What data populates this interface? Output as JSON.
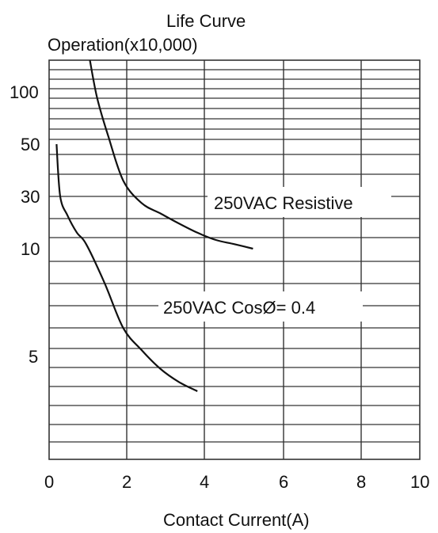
{
  "chart_data": {
    "type": "line",
    "title": "Life Curve",
    "ylabel": "Operation(x10,000)",
    "xlabel": "Contact Current(A)",
    "xlim": [
      0,
      10
    ],
    "x_ticks": [
      "0",
      "2",
      "4",
      "6",
      "8",
      "10"
    ],
    "y_ticks": [
      "100",
      "50",
      "30",
      "10",
      "5"
    ],
    "series": [
      {
        "name": "250VAC Resistive",
        "x": [
          1.1,
          1.3,
          1.6,
          2.0,
          2.5,
          3.0,
          3.5,
          4.0,
          4.5,
          5.0,
          5.5
        ],
        "y": [
          200,
          90,
          55,
          35,
          26,
          21,
          17,
          14,
          12,
          11,
          10
        ]
      },
      {
        "name": "250VAC CosØ= 0.4",
        "x": [
          0.2,
          0.3,
          0.5,
          0.75,
          1.0,
          1.5,
          2.0,
          2.5,
          3.0,
          3.5,
          4.0
        ],
        "y": [
          50,
          30,
          20,
          14,
          11,
          8,
          6,
          5.2,
          4.7,
          4.4,
          4.2
        ]
      }
    ],
    "grid": true
  }
}
